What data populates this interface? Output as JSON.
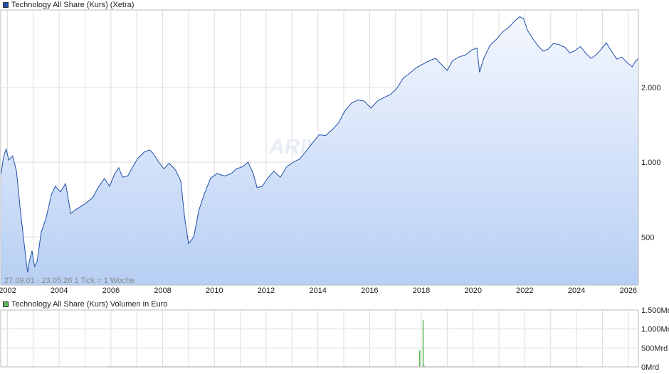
{
  "top_legend": {
    "label": "Technology All Share (Kurs) (Xetra)",
    "color": "#1f4ea8"
  },
  "bottom_legend": {
    "label": "Technology All Share (Kurs) Volumen in Euro",
    "color": "#5cb85c"
  },
  "info_text": "27.09.01 - 23.05.26   1 Tick = 1 Woche",
  "watermark": "ARIVA.DE",
  "colors": {
    "line": "#1f4ea8",
    "fill_top": "#f4f7fe",
    "fill_bottom": "#b7cff4",
    "grid": "#dddddd",
    "volume": "#3fae3f"
  },
  "chart_data": [
    {
      "type": "area",
      "x_tick_labels": [
        "2002",
        "2004",
        "2006",
        "2008",
        "2010",
        "2012",
        "2014",
        "2016",
        "2018",
        "2020",
        "2022",
        "2024",
        "2026"
      ],
      "y_tick_labels": [
        "2.000",
        "1.000",
        "500"
      ],
      "y_scale": "log",
      "y_ticks": [
        2000,
        1000,
        500
      ],
      "x_range": [
        2001.74,
        2026.39
      ],
      "y_range": [
        320,
        4100
      ],
      "series": [
        {
          "points": [
            [
              2001.74,
              880
            ],
            [
              2001.85,
              1050
            ],
            [
              2001.95,
              1130
            ],
            [
              2002.05,
              1020
            ],
            [
              2002.2,
              1060
            ],
            [
              2002.35,
              920
            ],
            [
              2002.5,
              640
            ],
            [
              2002.7,
              420
            ],
            [
              2002.78,
              360
            ],
            [
              2002.85,
              400
            ],
            [
              2002.95,
              440
            ],
            [
              2003.05,
              380
            ],
            [
              2003.15,
              400
            ],
            [
              2003.3,
              520
            ],
            [
              2003.5,
              600
            ],
            [
              2003.7,
              740
            ],
            [
              2003.85,
              800
            ],
            [
              2004.05,
              760
            ],
            [
              2004.25,
              820
            ],
            [
              2004.45,
              620
            ],
            [
              2004.6,
              640
            ],
            [
              2004.8,
              660
            ],
            [
              2005.0,
              680
            ],
            [
              2005.3,
              720
            ],
            [
              2005.5,
              790
            ],
            [
              2005.75,
              860
            ],
            [
              2005.95,
              800
            ],
            [
              2006.15,
              900
            ],
            [
              2006.3,
              950
            ],
            [
              2006.45,
              870
            ],
            [
              2006.65,
              880
            ],
            [
              2006.85,
              960
            ],
            [
              2007.05,
              1040
            ],
            [
              2007.3,
              1100
            ],
            [
              2007.5,
              1120
            ],
            [
              2007.65,
              1080
            ],
            [
              2007.85,
              1000
            ],
            [
              2008.05,
              940
            ],
            [
              2008.25,
              990
            ],
            [
              2008.5,
              930
            ],
            [
              2008.7,
              840
            ],
            [
              2008.85,
              600
            ],
            [
              2009.0,
              470
            ],
            [
              2009.2,
              500
            ],
            [
              2009.4,
              640
            ],
            [
              2009.6,
              740
            ],
            [
              2009.85,
              860
            ],
            [
              2010.1,
              900
            ],
            [
              2010.4,
              880
            ],
            [
              2010.65,
              900
            ],
            [
              2010.85,
              940
            ],
            [
              2011.1,
              960
            ],
            [
              2011.3,
              1000
            ],
            [
              2011.5,
              900
            ],
            [
              2011.65,
              790
            ],
            [
              2011.85,
              800
            ],
            [
              2012.05,
              860
            ],
            [
              2012.3,
              920
            ],
            [
              2012.55,
              870
            ],
            [
              2012.8,
              960
            ],
            [
              2013.05,
              1000
            ],
            [
              2013.3,
              1030
            ],
            [
              2013.55,
              1110
            ],
            [
              2013.8,
              1200
            ],
            [
              2014.05,
              1290
            ],
            [
              2014.3,
              1280
            ],
            [
              2014.55,
              1350
            ],
            [
              2014.8,
              1440
            ],
            [
              2015.05,
              1610
            ],
            [
              2015.3,
              1730
            ],
            [
              2015.55,
              1780
            ],
            [
              2015.8,
              1760
            ],
            [
              2016.05,
              1650
            ],
            [
              2016.3,
              1760
            ],
            [
              2016.55,
              1820
            ],
            [
              2016.8,
              1870
            ],
            [
              2017.05,
              1980
            ],
            [
              2017.3,
              2180
            ],
            [
              2017.55,
              2280
            ],
            [
              2017.8,
              2400
            ],
            [
              2018.05,
              2480
            ],
            [
              2018.3,
              2560
            ],
            [
              2018.55,
              2620
            ],
            [
              2018.8,
              2460
            ],
            [
              2019.0,
              2340
            ],
            [
              2019.2,
              2560
            ],
            [
              2019.45,
              2650
            ],
            [
              2019.7,
              2700
            ],
            [
              2019.95,
              2830
            ],
            [
              2020.15,
              2880
            ],
            [
              2020.25,
              2300
            ],
            [
              2020.4,
              2600
            ],
            [
              2020.65,
              2950
            ],
            [
              2020.9,
              3120
            ],
            [
              2021.15,
              3350
            ],
            [
              2021.4,
              3500
            ],
            [
              2021.6,
              3700
            ],
            [
              2021.8,
              3850
            ],
            [
              2021.95,
              3780
            ],
            [
              2022.1,
              3400
            ],
            [
              2022.3,
              3150
            ],
            [
              2022.5,
              2950
            ],
            [
              2022.7,
              2800
            ],
            [
              2022.9,
              2850
            ],
            [
              2023.1,
              3000
            ],
            [
              2023.3,
              2980
            ],
            [
              2023.55,
              2900
            ],
            [
              2023.75,
              2750
            ],
            [
              2023.95,
              2820
            ],
            [
              2024.15,
              2920
            ],
            [
              2024.35,
              2750
            ],
            [
              2024.55,
              2620
            ],
            [
              2024.75,
              2700
            ],
            [
              2024.95,
              2850
            ],
            [
              2025.15,
              3020
            ],
            [
              2025.35,
              2800
            ],
            [
              2025.55,
              2600
            ],
            [
              2025.75,
              2650
            ],
            [
              2025.95,
              2520
            ],
            [
              2026.15,
              2420
            ],
            [
              2026.28,
              2550
            ],
            [
              2026.39,
              2620
            ]
          ]
        }
      ]
    },
    {
      "type": "bar",
      "y_tick_labels": [
        "1.500Mrd",
        "1.000Mrd",
        "500Mrd",
        "0Mrd"
      ],
      "y_ticks": [
        1500,
        1000,
        500,
        0
      ],
      "y_range": [
        0,
        1500
      ],
      "bars": [
        {
          "x": 2017.92,
          "value": 440
        },
        {
          "x": 2018.05,
          "value": 1230
        },
        {
          "x": 2018.09,
          "value": 40
        }
      ]
    }
  ]
}
